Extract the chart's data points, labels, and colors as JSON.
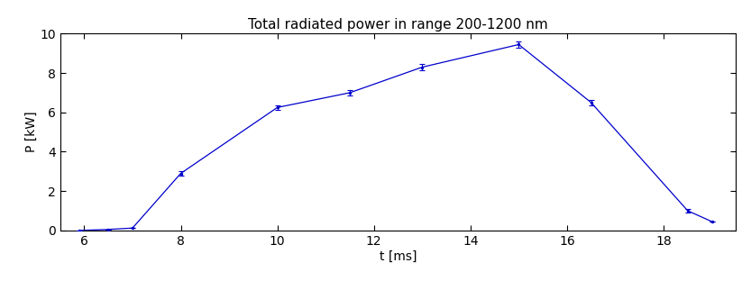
{
  "title": "Total radiated power in range 200-1200 nm",
  "xlabel": "t [ms]",
  "ylabel": "P [kW]",
  "x": [
    5.9,
    6.5,
    7.0,
    8.0,
    10.0,
    11.5,
    13.0,
    15.0,
    16.5,
    18.5,
    19.0
  ],
  "y": [
    0.0,
    0.05,
    0.12,
    2.9,
    6.25,
    7.0,
    8.3,
    9.45,
    6.5,
    1.0,
    0.45
  ],
  "yerr": [
    0.0,
    0.0,
    0.0,
    0.12,
    0.12,
    0.12,
    0.15,
    0.18,
    0.12,
    0.08,
    0.0
  ],
  "line_color": "#0000cc",
  "marker": ".",
  "markersize": 3,
  "xlim": [
    5.5,
    19.5
  ],
  "ylim": [
    0,
    10
  ],
  "xticks": [
    6,
    8,
    10,
    12,
    14,
    16,
    18
  ],
  "yticks": [
    0,
    2,
    4,
    6,
    8,
    10
  ],
  "figsize": [
    8.33,
    3.12
  ],
  "dpi": 100,
  "title_fontsize": 11,
  "label_fontsize": 10,
  "tick_fontsize": 10
}
